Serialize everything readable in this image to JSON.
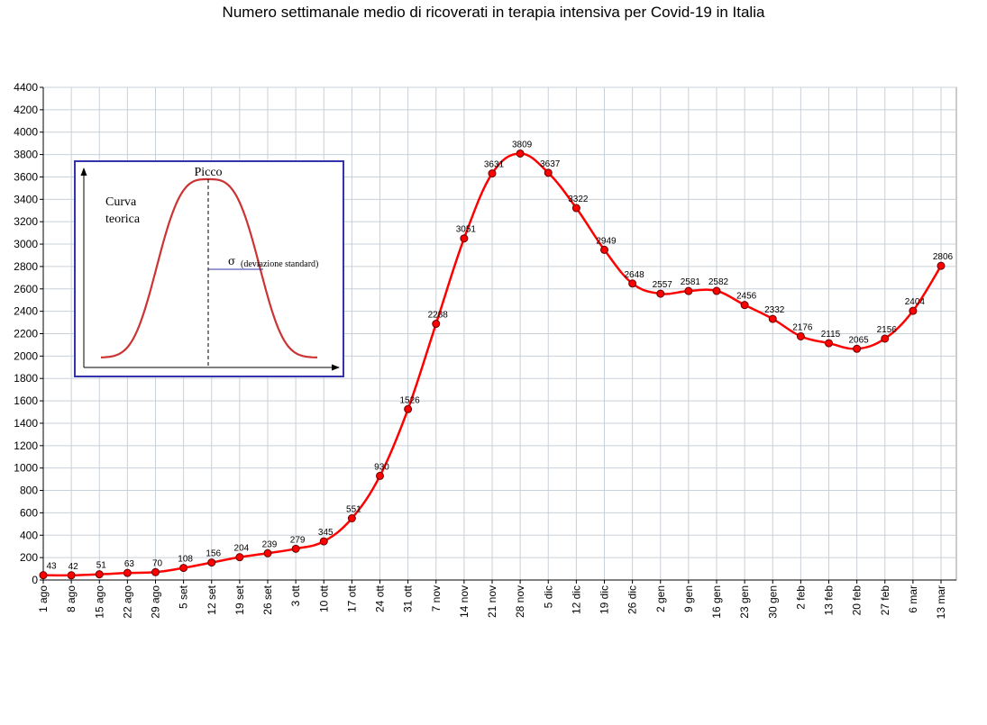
{
  "chart_data": {
    "type": "line",
    "title": "Numero settimanale medio di ricoverati in terapia intensiva per Covid-19 in Italia",
    "xlabel": "",
    "ylabel": "",
    "ylim": [
      0,
      4400
    ],
    "ytick_step": 200,
    "grid": true,
    "categories": [
      "1 ago",
      "8 ago",
      "15 ago",
      "22 ago",
      "29 ago",
      "5 set",
      "12 set",
      "19 set",
      "26 set",
      "3 ott",
      "10 ott",
      "17 ott",
      "24 ott",
      "31 ott",
      "7 nov",
      "14 nov",
      "21 nov",
      "28 nov",
      "5 dic",
      "12 dic",
      "19 dic",
      "26 dic",
      "2 gen",
      "9 gen",
      "16 gen",
      "23 gen",
      "30 gen",
      "2 feb",
      "13 feb",
      "20 feb",
      "27 feb",
      "6 mar",
      "13 mar"
    ],
    "series": [
      {
        "values": [
          43,
          42,
          51,
          63,
          70,
          108,
          156,
          204,
          239,
          279,
          345,
          551,
          930,
          1526,
          2288,
          3051,
          3631,
          3809,
          3637,
          3322,
          2949,
          2648,
          2557,
          2581,
          2582,
          2456,
          2332,
          2176,
          2115,
          2065,
          2156,
          2404,
          2806
        ],
        "labels": [
          "43",
          "42",
          "51",
          "63",
          "70",
          "108",
          "156",
          "204",
          "239",
          "279",
          "345",
          "551",
          "930",
          "1526",
          "2288",
          "3051",
          "3631",
          "3809",
          "3637",
          "3322",
          "2949",
          "2648",
          "2557",
          "2581",
          "2582",
          "2456",
          "2332",
          "2176",
          "2115",
          "2065",
          "2156",
          "2404",
          "2806"
        ],
        "color": "#ff0000",
        "marker_color": "#cc0000"
      }
    ],
    "inset": {
      "peak_label": "Picco",
      "curve_label_line1": "Curva",
      "curve_label_line2": "teorica",
      "sigma_symbol": "σ",
      "sigma_label": "(deviazione standard)",
      "border_color": "#3333aa",
      "curve_color": "#cc3333"
    },
    "colors": {
      "grid": "#c8d0d8",
      "axis": "#000000"
    }
  }
}
